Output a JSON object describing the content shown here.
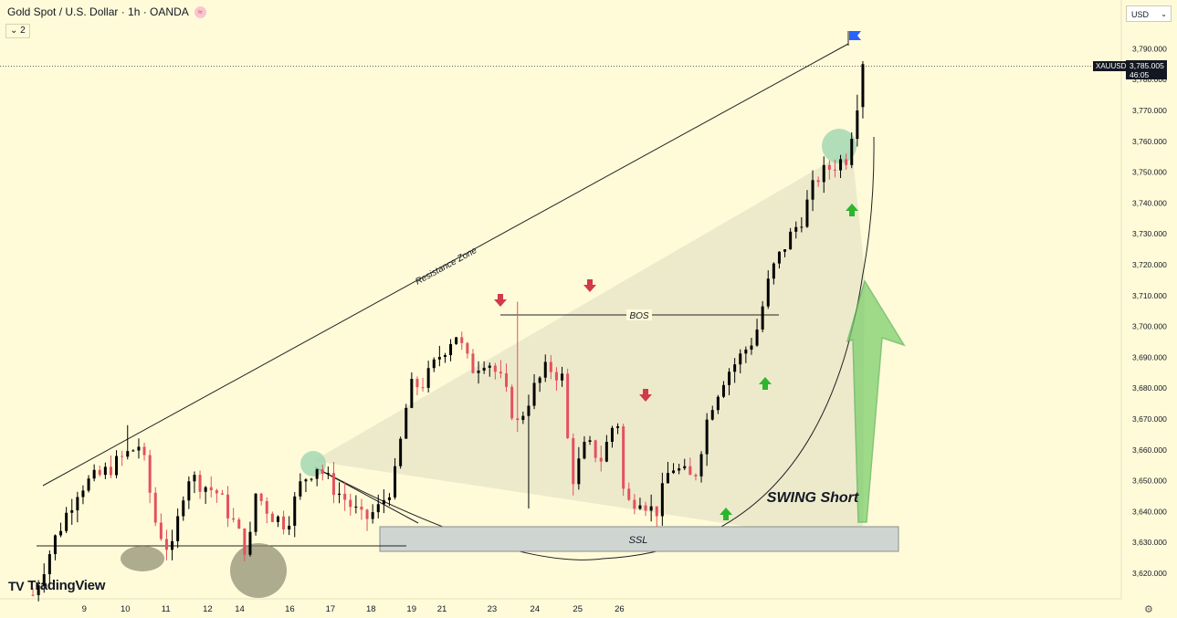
{
  "header": {
    "title": "Gold Spot / U.S. Dollar · 1h · OANDA",
    "indicator_count": "2",
    "currency": "USD"
  },
  "brand": "TradingView",
  "price_tag": {
    "symbol": "XAUUSD",
    "price": "3,785.005",
    "countdown": "46:05"
  },
  "chart_data": {
    "type": "candlestick",
    "instrument": "XAUUSD",
    "timeframe": "1h",
    "y_range": [
      3610,
      3796
    ],
    "y_ticks": [
      "3,620.000",
      "3,630.000",
      "3,640.000",
      "3,650.000",
      "3,660.000",
      "3,670.000",
      "3,680.000",
      "3,690.000",
      "3,700.000",
      "3,710.000",
      "3,720.000",
      "3,730.000",
      "3,740.000",
      "3,750.000",
      "3,760.000",
      "3,770.000",
      "3,780.000",
      "3,790.000"
    ],
    "x_ticks": [
      {
        "label": "9",
        "t": 9.6
      },
      {
        "label": "10",
        "t": 16.9
      },
      {
        "label": "11",
        "t": 24.1
      },
      {
        "label": "12",
        "t": 31.5
      },
      {
        "label": "14",
        "t": 37.2
      },
      {
        "label": "16",
        "t": 46.1
      },
      {
        "label": "17",
        "t": 53.3
      },
      {
        "label": "18",
        "t": 60.5
      },
      {
        "label": "19",
        "t": 67.7
      },
      {
        "label": "21",
        "t": 73.1
      },
      {
        "label": "23",
        "t": 82.0
      },
      {
        "label": "24",
        "t": 89.6
      },
      {
        "label": "25",
        "t": 97.2
      },
      {
        "label": "26",
        "t": 104.6
      }
    ],
    "candles": [],
    "current_price": 3785.005,
    "annotations": {
      "resistance_label": "Resistance Zone",
      "bos_label": "BOS",
      "ssl_label": "SSL",
      "swing_label": "SWING Short"
    }
  }
}
